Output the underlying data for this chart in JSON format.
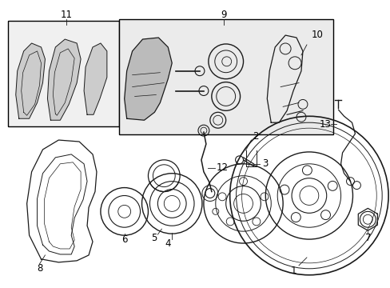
{
  "background_color": "#ffffff",
  "figsize": [
    4.89,
    3.6
  ],
  "dpi": 100,
  "line_color": "#1a1a1a",
  "text_color": "#000000",
  "font_size": 8.5
}
